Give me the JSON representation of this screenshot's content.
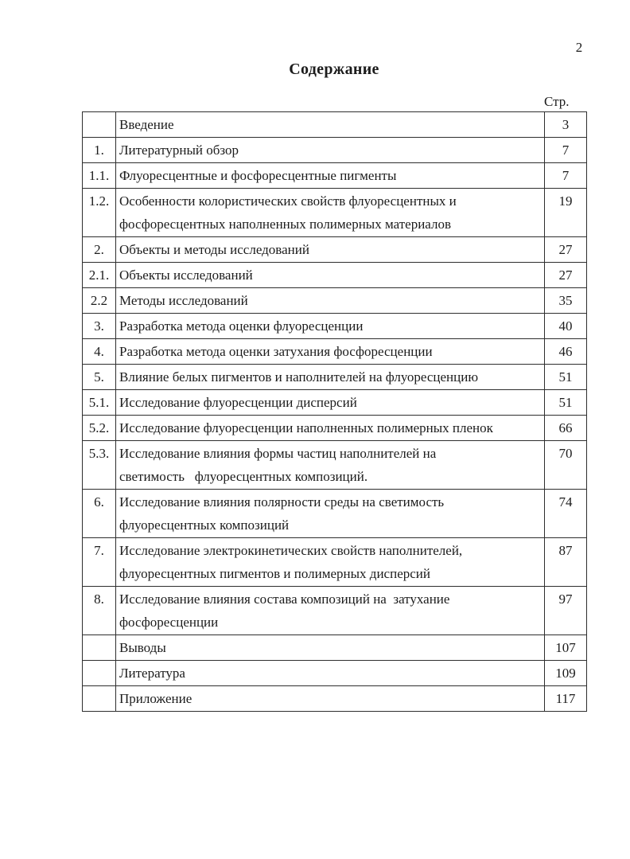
{
  "page": {
    "page_number": "2",
    "title": "Содержание",
    "page_column_header": "Стр."
  },
  "toc": {
    "rows": [
      {
        "num": "",
        "title": "Введение",
        "page": "3"
      },
      {
        "num": "1.",
        "title": "Литературный обзор",
        "page": "7"
      },
      {
        "num": "1.1.",
        "title": "Флуоресцентные и фосфоресцентные пигменты",
        "page": "7"
      },
      {
        "num": "1.2.",
        "title": "Особенности колористических свойств флуоресцентных и\nфосфоресцентных наполненных полимерных материалов",
        "page": "19"
      },
      {
        "num": "2.",
        "title": "Объекты и методы исследований",
        "page": "27"
      },
      {
        "num": "2.1.",
        "title": "Объекты исследований",
        "page": "27"
      },
      {
        "num": "2.2",
        "title": "Методы исследований",
        "page": "35"
      },
      {
        "num": "3.",
        "title": "Разработка метода оценки флуоресценции",
        "page": "40"
      },
      {
        "num": "4.",
        "title": "Разработка метода оценки затухания фосфоресценции",
        "page": "46"
      },
      {
        "num": "5.",
        "title": "Влияние белых пигментов и наполнителей на флуоресценцию",
        "page": "51"
      },
      {
        "num": "5.1.",
        "title": "Исследование флуоресценции дисперсий",
        "page": "51"
      },
      {
        "num": "5.2.",
        "title": "Исследование флуоресценции наполненных полимерных пленок",
        "page": "66"
      },
      {
        "num": "5.3.",
        "title": "Исследование влияния формы частиц наполнителей на\nсветимость   флуоресцентных композиций.",
        "page": "70"
      },
      {
        "num": "6.",
        "title": "Исследование влияния полярности среды на светимость\nфлуоресцентных композиций",
        "page": "74"
      },
      {
        "num": "7.",
        "title": "Исследование электрокинетических свойств наполнителей,\nфлуоресцентных пигментов и полимерных дисперсий",
        "page": "87"
      },
      {
        "num": "8.",
        "title": "Исследование влияния состава композиций на  затухание\nфосфоресценции",
        "page": "97"
      },
      {
        "num": "",
        "title": "Выводы",
        "page": "107"
      },
      {
        "num": "",
        "title": "Литература",
        "page": "109"
      },
      {
        "num": "",
        "title": "Приложение",
        "page": "117"
      }
    ]
  },
  "colors": {
    "ink": "#1c1c1c",
    "paper": "#ffffff",
    "table_border": "#2e2e2e"
  }
}
